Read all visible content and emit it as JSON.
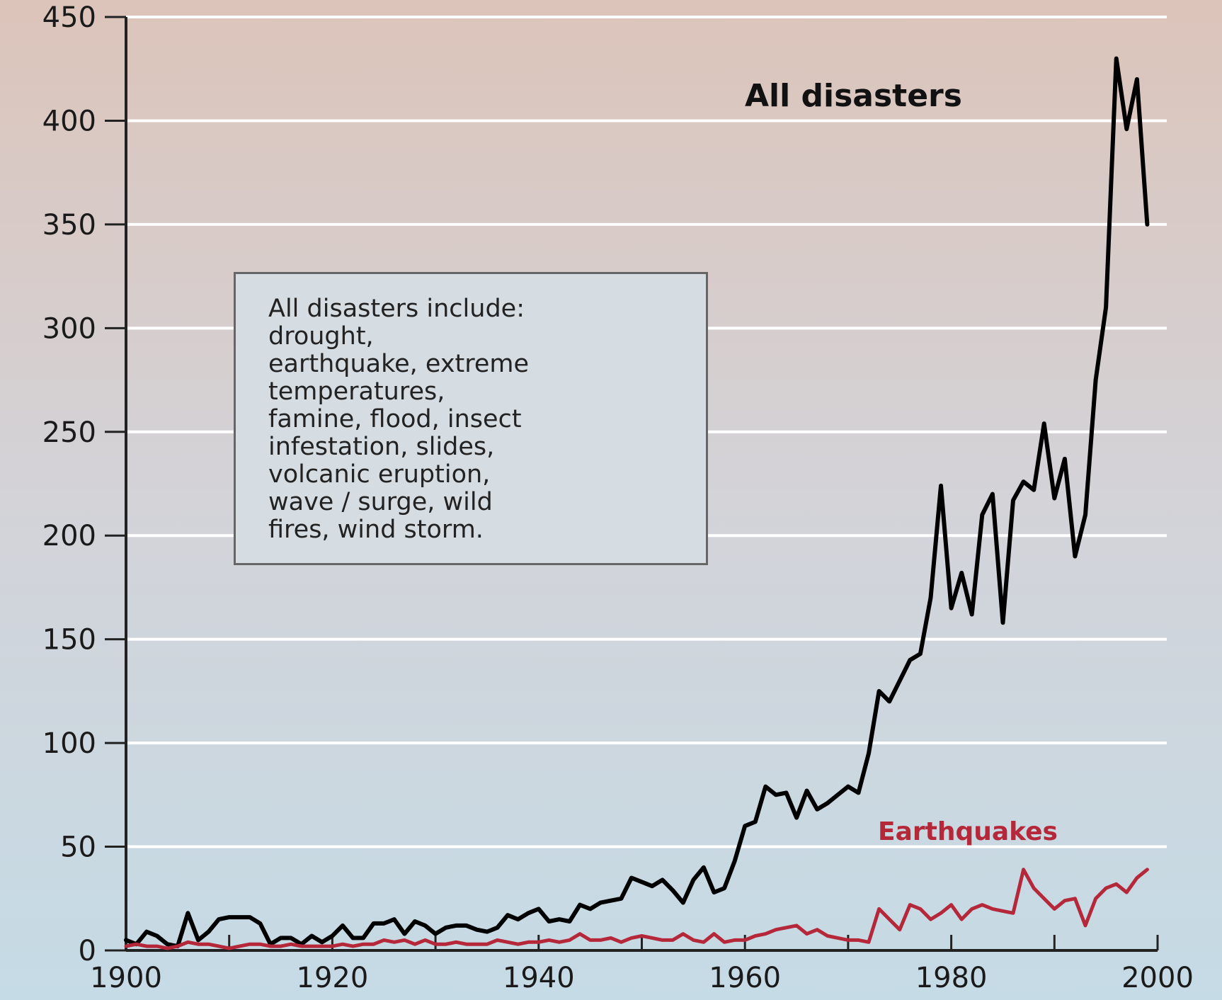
{
  "chart_data": {
    "type": "line",
    "title": "",
    "xlabel": "",
    "ylabel": "",
    "xlim": [
      1900,
      2000
    ],
    "ylim": [
      0,
      450
    ],
    "xticks": [
      1900,
      1920,
      1940,
      1960,
      1980,
      2000
    ],
    "yticks": [
      0,
      50,
      100,
      150,
      200,
      250,
      300,
      350,
      400,
      450
    ],
    "grid": true,
    "colors": {
      "all": "#000000",
      "earthquakes": "#b5283a",
      "grid": "#ffffff",
      "axis": "#222222",
      "bg_top": "#dcc5bc",
      "bg_bottom": "#c6dbe6"
    },
    "note": {
      "lines": [
        "All disasters include:",
        "drought,",
        "earthquake, extreme",
        "temperatures,",
        "famine, flood, insect",
        "infestation, slides,",
        "volcanic eruption,",
        "wave / surge, wild",
        "fires, wind storm."
      ]
    },
    "series": [
      {
        "name": "All disasters",
        "key": "all",
        "x": [
          1900,
          1901,
          1902,
          1903,
          1904,
          1905,
          1906,
          1907,
          1908,
          1909,
          1910,
          1911,
          1912,
          1913,
          1914,
          1915,
          1916,
          1917,
          1918,
          1919,
          1920,
          1921,
          1922,
          1923,
          1924,
          1925,
          1926,
          1927,
          1928,
          1929,
          1930,
          1931,
          1932,
          1933,
          1934,
          1935,
          1936,
          1937,
          1938,
          1939,
          1940,
          1941,
          1942,
          1943,
          1944,
          1945,
          1946,
          1947,
          1948,
          1949,
          1950,
          1951,
          1952,
          1953,
          1954,
          1955,
          1956,
          1957,
          1958,
          1959,
          1960,
          1961,
          1962,
          1963,
          1964,
          1965,
          1966,
          1967,
          1968,
          1969,
          1970,
          1971,
          1972,
          1973,
          1974,
          1975,
          1976,
          1977,
          1978,
          1979,
          1980,
          1981,
          1982,
          1983,
          1984,
          1985,
          1986,
          1987,
          1988,
          1989,
          1990,
          1991,
          1992,
          1993,
          1994,
          1995,
          1996,
          1997,
          1998,
          1999
        ],
        "values": [
          5,
          3,
          9,
          7,
          3,
          2,
          18,
          5,
          9,
          15,
          16,
          16,
          16,
          13,
          3,
          6,
          6,
          3,
          7,
          4,
          7,
          12,
          6,
          6,
          13,
          13,
          15,
          8,
          14,
          12,
          8,
          11,
          12,
          12,
          10,
          9,
          11,
          17,
          15,
          18,
          20,
          14,
          15,
          14,
          22,
          20,
          23,
          24,
          25,
          35,
          33,
          31,
          34,
          29,
          23,
          34,
          40,
          28,
          30,
          43,
          60,
          62,
          79,
          75,
          76,
          64,
          77,
          68,
          71,
          75,
          79,
          76,
          95,
          125,
          120,
          130,
          140,
          143,
          170,
          224,
          165,
          182,
          162,
          210,
          220,
          158,
          217,
          226,
          222,
          254,
          218,
          237,
          190,
          210,
          275,
          310,
          430,
          396,
          420,
          350
        ]
      },
      {
        "name": "Earthquakes",
        "key": "earthquakes",
        "x": [
          1900,
          1901,
          1902,
          1903,
          1904,
          1905,
          1906,
          1907,
          1908,
          1909,
          1910,
          1911,
          1912,
          1913,
          1914,
          1915,
          1916,
          1917,
          1918,
          1919,
          1920,
          1921,
          1922,
          1923,
          1924,
          1925,
          1926,
          1927,
          1928,
          1929,
          1930,
          1931,
          1932,
          1933,
          1934,
          1935,
          1936,
          1937,
          1938,
          1939,
          1940,
          1941,
          1942,
          1943,
          1944,
          1945,
          1946,
          1947,
          1948,
          1949,
          1950,
          1951,
          1952,
          1953,
          1954,
          1955,
          1956,
          1957,
          1958,
          1959,
          1960,
          1961,
          1962,
          1963,
          1964,
          1965,
          1966,
          1967,
          1968,
          1969,
          1970,
          1971,
          1972,
          1973,
          1974,
          1975,
          1976,
          1977,
          1978,
          1979,
          1980,
          1981,
          1982,
          1983,
          1984,
          1985,
          1986,
          1987,
          1988,
          1989,
          1990,
          1991,
          1992,
          1993,
          1994,
          1995,
          1996,
          1997,
          1998,
          1999
        ],
        "values": [
          2,
          3,
          2,
          2,
          1,
          2,
          4,
          3,
          3,
          2,
          1,
          2,
          3,
          3,
          2,
          2,
          3,
          2,
          2,
          2,
          2,
          3,
          2,
          3,
          3,
          5,
          4,
          5,
          3,
          5,
          3,
          3,
          4,
          3,
          3,
          3,
          5,
          4,
          3,
          4,
          4,
          5,
          4,
          5,
          8,
          5,
          5,
          6,
          4,
          6,
          7,
          6,
          5,
          5,
          8,
          5,
          4,
          8,
          4,
          5,
          5,
          7,
          8,
          10,
          11,
          12,
          8,
          10,
          7,
          6,
          5,
          5,
          4,
          20,
          15,
          10,
          22,
          20,
          15,
          18,
          22,
          15,
          20,
          22,
          20,
          19,
          18,
          39,
          30,
          25,
          20,
          24,
          25,
          12,
          25,
          30,
          32,
          28,
          35,
          39
        ]
      }
    ]
  }
}
